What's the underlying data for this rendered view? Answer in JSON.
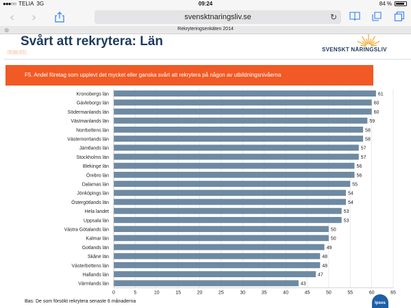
{
  "status_bar": {
    "carrier": "TELIA",
    "network": "3G",
    "time": "09:24",
    "battery": "84 %",
    "battery_level": 0.84
  },
  "browser": {
    "url": "svensktnaringsliv.se",
    "tab_title": "Rekryteringsenkäten 2014",
    "icons": [
      "back-icon",
      "forward-icon",
      "share-icon",
      "reload-icon",
      "book-icon",
      "bookmark-icon",
      "tabs-icon",
      "close-icon"
    ]
  },
  "slide": {
    "title": "Svårt att rekrytera: Län",
    "page_indicator": "5 av 17",
    "logo_text": "SVENSKT NÄRINGSLIV",
    "banner": "F5. Andel företag som upplevt det mycket eller ganska svårt att rekrytera på någon av utbildningsnivåerna",
    "footnote": "Bas: De som försökt rekrytera senaste 6 månaderna",
    "ipsos_text": "Ipsos"
  },
  "colors": {
    "bar": "#6e8aa3",
    "banner": "#f15a24",
    "title": "#1d3b60",
    "logo_sun": "#f4a82b"
  },
  "chart_data": {
    "type": "bar",
    "orientation": "horizontal",
    "categories": [
      "Kronobergs län",
      "Gävleborgs län",
      "Södermanlands län",
      "Västmanlands län",
      "Norrbottens län",
      "Västernorrlands län",
      "Jämtlands län",
      "Stockholms län",
      "Blekinge län",
      "Örebro län",
      "Dalarnas län",
      "Jönköpings län",
      "Östergötlands län",
      "Hela landet",
      "Uppsala län",
      "Västra Götalands län",
      "Kalmar län",
      "Gotlands län",
      "Skåne län",
      "Västerbottens län",
      "Hallands län",
      "Värmlands län"
    ],
    "values": [
      61,
      60,
      60,
      59,
      58,
      58,
      57,
      57,
      56,
      56,
      55,
      54,
      54,
      53,
      53,
      50,
      50,
      49,
      48,
      48,
      47,
      43
    ],
    "xlim": [
      0,
      65
    ],
    "xticks": [
      "0",
      "5",
      "10",
      "15",
      "20",
      "25",
      "30",
      "35",
      "40",
      "45",
      "50",
      "55",
      "60",
      "65"
    ],
    "grid": true,
    "title": "",
    "xlabel": "",
    "ylabel": ""
  }
}
